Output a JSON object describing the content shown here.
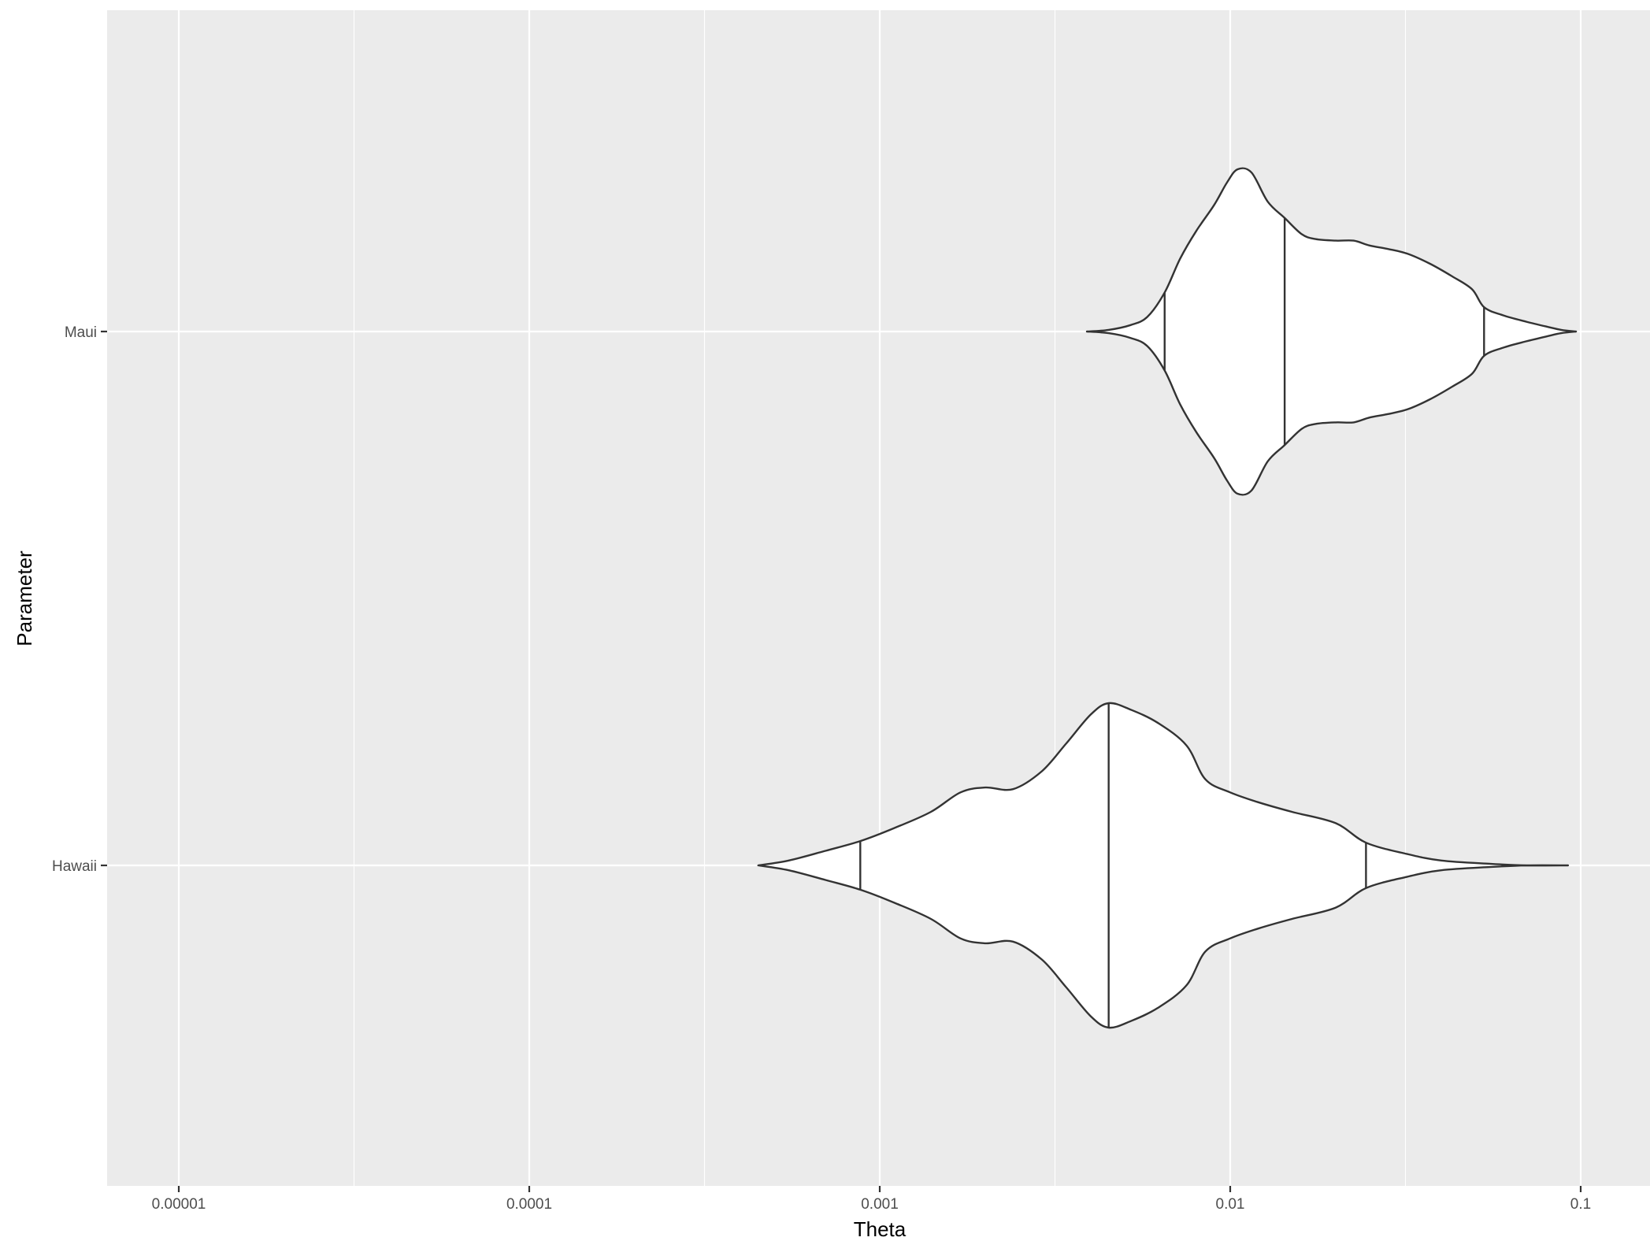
{
  "chart_data": {
    "type": "violin",
    "orientation": "horizontal",
    "xlabel": "Theta",
    "ylabel": "Parameter",
    "x_scale": "log10",
    "xlim": [
      6.3e-06,
      0.2
    ],
    "x_ticks": [
      1e-05,
      0.0001,
      0.001,
      0.01,
      0.1
    ],
    "x_tick_labels": [
      "0.00001",
      "0.0001",
      "0.001",
      "0.01",
      "0.1"
    ],
    "categories": [
      "Hawaii",
      "Maui"
    ],
    "grid": true,
    "colors": {
      "panel_background": "#ebebeb",
      "grid": "#ffffff",
      "violin_fill": "#ffffff",
      "violin_outline": "#333333",
      "tick_text": "#4d4d4d"
    },
    "series": [
      {
        "name": "Maui",
        "quantiles": {
          "q25": 0.0065,
          "q50": 0.0143,
          "q75": 0.053
        },
        "density": [
          [
            0.0039,
            0.0
          ],
          [
            0.0045,
            0.01
          ],
          [
            0.0052,
            0.04
          ],
          [
            0.0058,
            0.09
          ],
          [
            0.0065,
            0.24
          ],
          [
            0.0072,
            0.45
          ],
          [
            0.008,
            0.62
          ],
          [
            0.009,
            0.78
          ],
          [
            0.0098,
            0.92
          ],
          [
            0.0105,
            1.0
          ],
          [
            0.0115,
            0.98
          ],
          [
            0.0128,
            0.8
          ],
          [
            0.0143,
            0.7
          ],
          [
            0.016,
            0.6
          ],
          [
            0.0175,
            0.57
          ],
          [
            0.02,
            0.56
          ],
          [
            0.0225,
            0.56
          ],
          [
            0.025,
            0.53
          ],
          [
            0.028,
            0.51
          ],
          [
            0.032,
            0.48
          ],
          [
            0.037,
            0.42
          ],
          [
            0.043,
            0.34
          ],
          [
            0.049,
            0.26
          ],
          [
            0.053,
            0.15
          ],
          [
            0.06,
            0.1
          ],
          [
            0.07,
            0.06
          ],
          [
            0.08,
            0.03
          ],
          [
            0.088,
            0.01
          ],
          [
            0.097,
            0.0
          ]
        ]
      },
      {
        "name": "Hawaii",
        "quantiles": {
          "q25": 0.00088,
          "q50": 0.0045,
          "q75": 0.0244
        },
        "density": [
          [
            0.00045,
            0.0
          ],
          [
            0.00055,
            0.03
          ],
          [
            0.0007,
            0.09
          ],
          [
            0.00088,
            0.15
          ],
          [
            0.0011,
            0.23
          ],
          [
            0.0014,
            0.33
          ],
          [
            0.0017,
            0.45
          ],
          [
            0.002,
            0.48
          ],
          [
            0.0024,
            0.47
          ],
          [
            0.0029,
            0.58
          ],
          [
            0.0034,
            0.75
          ],
          [
            0.004,
            0.93
          ],
          [
            0.0045,
            1.0
          ],
          [
            0.0052,
            0.96
          ],
          [
            0.0062,
            0.88
          ],
          [
            0.0075,
            0.74
          ],
          [
            0.0085,
            0.53
          ],
          [
            0.01,
            0.45
          ],
          [
            0.012,
            0.39
          ],
          [
            0.015,
            0.33
          ],
          [
            0.02,
            0.26
          ],
          [
            0.0244,
            0.14
          ],
          [
            0.032,
            0.07
          ],
          [
            0.04,
            0.03
          ],
          [
            0.055,
            0.01
          ],
          [
            0.07,
            0.0
          ],
          [
            0.092,
            0.0
          ]
        ]
      }
    ]
  }
}
